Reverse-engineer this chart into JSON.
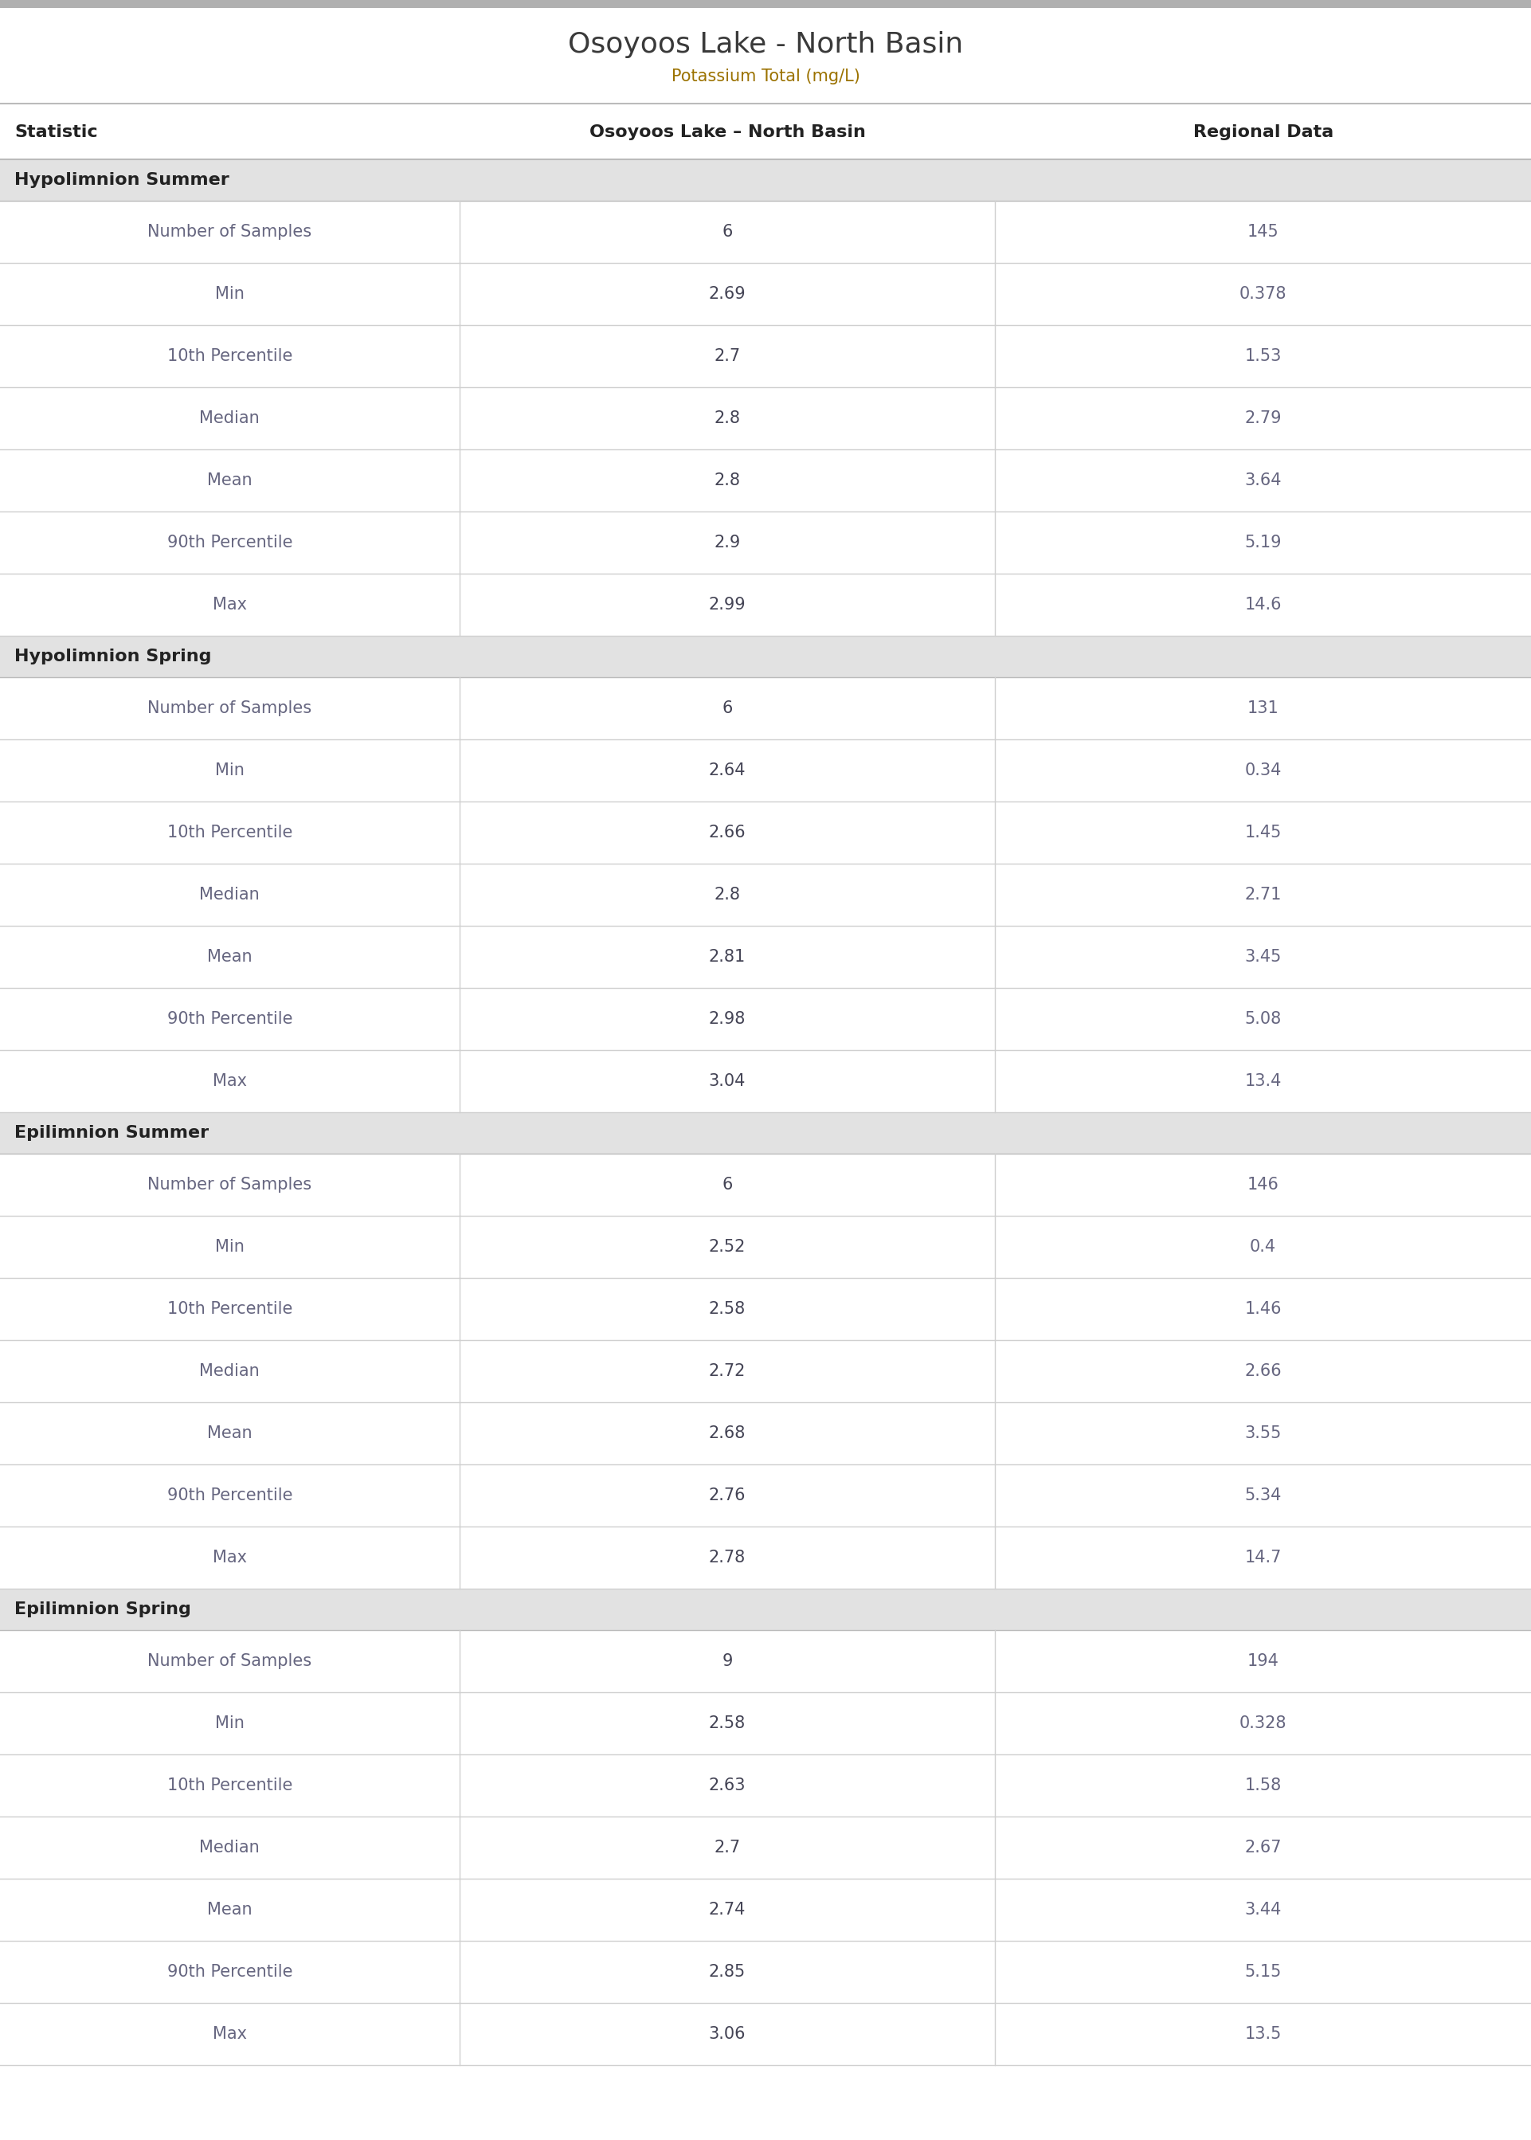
{
  "title": "Osoyoos Lake - North Basin",
  "subtitle": "Potassium Total (mg/L)",
  "col_headers": [
    "Statistic",
    "Osoyoos Lake – North Basin",
    "Regional Data"
  ],
  "sections": [
    {
      "name": "Hypolimnion Summer",
      "rows": [
        [
          "Number of Samples",
          "6",
          "145"
        ],
        [
          "Min",
          "2.69",
          "0.378"
        ],
        [
          "10th Percentile",
          "2.7",
          "1.53"
        ],
        [
          "Median",
          "2.8",
          "2.79"
        ],
        [
          "Mean",
          "2.8",
          "3.64"
        ],
        [
          "90th Percentile",
          "2.9",
          "5.19"
        ],
        [
          "Max",
          "2.99",
          "14.6"
        ]
      ]
    },
    {
      "name": "Hypolimnion Spring",
      "rows": [
        [
          "Number of Samples",
          "6",
          "131"
        ],
        [
          "Min",
          "2.64",
          "0.34"
        ],
        [
          "10th Percentile",
          "2.66",
          "1.45"
        ],
        [
          "Median",
          "2.8",
          "2.71"
        ],
        [
          "Mean",
          "2.81",
          "3.45"
        ],
        [
          "90th Percentile",
          "2.98",
          "5.08"
        ],
        [
          "Max",
          "3.04",
          "13.4"
        ]
      ]
    },
    {
      "name": "Epilimnion Summer",
      "rows": [
        [
          "Number of Samples",
          "6",
          "146"
        ],
        [
          "Min",
          "2.52",
          "0.4"
        ],
        [
          "10th Percentile",
          "2.58",
          "1.46"
        ],
        [
          "Median",
          "2.72",
          "2.66"
        ],
        [
          "Mean",
          "2.68",
          "3.55"
        ],
        [
          "90th Percentile",
          "2.76",
          "5.34"
        ],
        [
          "Max",
          "2.78",
          "14.7"
        ]
      ]
    },
    {
      "name": "Epilimnion Spring",
      "rows": [
        [
          "Number of Samples",
          "9",
          "194"
        ],
        [
          "Min",
          "2.58",
          "0.328"
        ],
        [
          "10th Percentile",
          "2.63",
          "1.58"
        ],
        [
          "Median",
          "2.7",
          "2.67"
        ],
        [
          "Mean",
          "2.74",
          "3.44"
        ],
        [
          "90th Percentile",
          "2.85",
          "5.15"
        ],
        [
          "Max",
          "3.06",
          "13.5"
        ]
      ]
    }
  ],
  "title_color": "#3a3a3a",
  "subtitle_color": "#9B7200",
  "header_text_color": "#222222",
  "section_bg_color": "#e2e2e2",
  "section_text_color": "#222222",
  "row_line_color": "#d0d0d0",
  "col1_text_color": "#666680",
  "col2_text_color": "#444455",
  "col3_text_color": "#666680",
  "header_line_color": "#bbbbbb",
  "top_bar_color": "#b0b0b0",
  "title_font_size": 26,
  "subtitle_font_size": 15,
  "header_font_size": 16,
  "section_font_size": 16,
  "data_font_size": 15,
  "col_split1": 0.3,
  "col_split2": 0.65
}
